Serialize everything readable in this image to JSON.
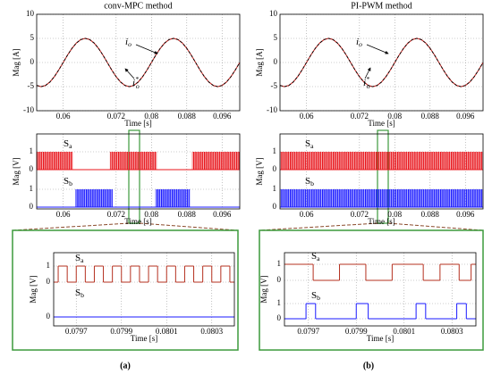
{
  "chart_data": [
    {
      "type": "line",
      "title": "conv-MPC method",
      "xlabel": "Time [s]",
      "ylabel": "Mag [A]",
      "xlim": [
        0.054,
        0.1
      ],
      "xticks": [
        0.06,
        0.072,
        0.08,
        0.088,
        0.096
      ],
      "ylim": [
        -10,
        10
      ],
      "yticks": [
        -10,
        -5,
        0,
        5,
        10
      ],
      "grid": true,
      "x": [
        0.054,
        0.055,
        0.056,
        0.057,
        0.058,
        0.059,
        0.06,
        0.061,
        0.062,
        0.063,
        0.064,
        0.065,
        0.066,
        0.067,
        0.068,
        0.069,
        0.07,
        0.071,
        0.072,
        0.073,
        0.074,
        0.075,
        0.076,
        0.077,
        0.078,
        0.079,
        0.08,
        0.081,
        0.082,
        0.083,
        0.084,
        0.085,
        0.086,
        0.087,
        0.088,
        0.089,
        0.09,
        0.091,
        0.092,
        0.093,
        0.094,
        0.095,
        0.096,
        0.097,
        0.098,
        0.099,
        0.1
      ],
      "series": [
        {
          "color": "#d0312d",
          "dashed": false,
          "label": {
            "base": "i",
            "sub": "o"
          },
          "values": [
            -4.76,
            -5,
            -4.76,
            -4.05,
            -2.94,
            -1.55,
            0,
            1.55,
            2.94,
            4.05,
            4.76,
            5,
            4.76,
            4.05,
            2.94,
            1.55,
            0,
            -1.55,
            -2.94,
            -4.05,
            -4.76,
            -5,
            -4.76,
            -4.05,
            -2.94,
            -1.55,
            0,
            1.55,
            2.94,
            4.05,
            4.76,
            5,
            4.76,
            4.05,
            2.94,
            1.55,
            0,
            -1.55,
            -2.94,
            -4.05,
            -4.76,
            -5,
            -4.76,
            -4.05,
            -2.94,
            -1.55,
            0
          ]
        },
        {
          "color": "#000000",
          "dashed": true,
          "label": {
            "base": "i",
            "sub": "o",
            "sup": "*"
          },
          "values": [
            -4.76,
            -5,
            -4.76,
            -4.05,
            -2.94,
            -1.55,
            0,
            1.55,
            2.94,
            4.05,
            4.76,
            5,
            4.76,
            4.05,
            2.94,
            1.55,
            0,
            -1.55,
            -2.94,
            -4.05,
            -4.76,
            -5,
            -4.76,
            -4.05,
            -2.94,
            -1.55,
            0,
            1.55,
            2.94,
            4.05,
            4.76,
            5,
            4.76,
            4.05,
            2.94,
            1.55,
            0,
            -1.55,
            -2.94,
            -4.05,
            -4.76,
            -5,
            -4.76,
            -4.05,
            -2.94,
            -1.55,
            0
          ]
        }
      ]
    },
    {
      "type": "line",
      "title": "PI-PWM method",
      "xlabel": "Time [s]",
      "ylabel": "Mag [A]",
      "xlim": [
        0.054,
        0.1
      ],
      "xticks": [
        0.06,
        0.072,
        0.08,
        0.088,
        0.096
      ],
      "ylim": [
        -10,
        10
      ],
      "yticks": [
        -10,
        -5,
        0,
        5,
        10
      ],
      "grid": true,
      "x": [
        0.054,
        0.055,
        0.056,
        0.057,
        0.058,
        0.059,
        0.06,
        0.061,
        0.062,
        0.063,
        0.064,
        0.065,
        0.066,
        0.067,
        0.068,
        0.069,
        0.07,
        0.071,
        0.072,
        0.073,
        0.074,
        0.075,
        0.076,
        0.077,
        0.078,
        0.079,
        0.08,
        0.081,
        0.082,
        0.083,
        0.084,
        0.085,
        0.086,
        0.087,
        0.088,
        0.089,
        0.09,
        0.091,
        0.092,
        0.093,
        0.094,
        0.095,
        0.096,
        0.097,
        0.098,
        0.099,
        0.1
      ],
      "series": [
        {
          "color": "#d0312d",
          "dashed": false,
          "label": {
            "base": "i",
            "sub": "o"
          },
          "values": [
            -4.76,
            -5,
            -4.76,
            -4.05,
            -2.94,
            -1.55,
            0,
            1.55,
            2.94,
            4.05,
            4.76,
            5,
            4.76,
            4.05,
            2.94,
            1.55,
            0,
            -1.55,
            -2.94,
            -4.05,
            -4.76,
            -5,
            -4.76,
            -4.05,
            -2.94,
            -1.55,
            0,
            1.55,
            2.94,
            4.05,
            4.76,
            5,
            4.76,
            4.05,
            2.94,
            1.55,
            0,
            -1.55,
            -2.94,
            -4.05,
            -4.76,
            -5,
            -4.76,
            -4.05,
            -2.94,
            -1.55,
            0
          ]
        },
        {
          "color": "#000000",
          "dashed": true,
          "label": {
            "base": "i",
            "sub": "o",
            "sup": "*"
          },
          "values": [
            -4.76,
            -5,
            -4.76,
            -4.05,
            -2.94,
            -1.55,
            0,
            1.55,
            2.94,
            4.05,
            4.76,
            5,
            4.76,
            4.05,
            2.94,
            1.55,
            0,
            -1.55,
            -2.94,
            -4.05,
            -4.76,
            -5,
            -4.76,
            -4.05,
            -2.94,
            -1.55,
            0,
            1.55,
            2.94,
            4.05,
            4.76,
            5,
            4.76,
            4.05,
            2.94,
            1.55,
            0,
            -1.55,
            -2.94,
            -4.05,
            -4.76,
            -5,
            -4.76,
            -4.05,
            -2.94,
            -1.55,
            0
          ]
        }
      ]
    },
    {
      "type": "digital",
      "xlabel": "Time [s]",
      "ylabel": "Mag [V]",
      "xlim": [
        0.054,
        0.1
      ],
      "xticks": [
        0.06,
        0.072,
        0.08,
        0.088,
        0.096
      ],
      "grid": true,
      "tracks": [
        {
          "name": "S",
          "sub": "a",
          "color": "#e8141b",
          "yticks": [
            0,
            1
          ],
          "bursts": [
            [
              0.054,
              0.0622
            ],
            [
              0.0706,
              0.0812
            ],
            [
              0.0892,
              0.1
            ]
          ]
        },
        {
          "name": "S",
          "sub": "b",
          "color": "#1a1aff",
          "yticks": [
            0,
            1
          ],
          "bursts": [
            [
              0.0628,
              0.0712
            ],
            [
              0.0809,
              0.0887
            ]
          ]
        }
      ]
    },
    {
      "type": "digital",
      "xlabel": "Time [s]",
      "ylabel": "Mag [V]",
      "xlim": [
        0.054,
        0.1
      ],
      "xticks": [
        0.06,
        0.072,
        0.08,
        0.088,
        0.096
      ],
      "grid": true,
      "tracks": [
        {
          "name": "S",
          "sub": "a",
          "color": "#e8141b",
          "yticks": [
            0,
            1
          ],
          "bursts": [
            [
              0.054,
              0.1
            ]
          ]
        },
        {
          "name": "S",
          "sub": "b",
          "color": "#1a1aff",
          "yticks": [
            0,
            1
          ],
          "bursts": [
            [
              0.054,
              0.1
            ]
          ]
        }
      ]
    },
    {
      "type": "step",
      "xlabel": "Time [s]",
      "ylabel": "Mag [V]",
      "xlim": [
        0.0796,
        0.0804
      ],
      "xticks": [
        0.0797,
        0.0799,
        0.0801,
        0.0803
      ],
      "grid": true,
      "tracks": [
        {
          "name": "S",
          "sub": "a",
          "color": "#b5301f",
          "yticks": [
            0,
            1
          ],
          "x": [
            0.0796,
            0.07962,
            0.07966,
            0.0797,
            0.07974,
            0.07978,
            0.07982,
            0.07986,
            0.0799,
            0.07994,
            0.07998,
            0.08002,
            0.08006,
            0.0801,
            0.08014,
            0.08018,
            0.08022,
            0.08026,
            0.0803,
            0.08034,
            0.08038
          ],
          "values": [
            0,
            1,
            0,
            1,
            0,
            1,
            0,
            1,
            0,
            1,
            0,
            1,
            0,
            1,
            0,
            1,
            0,
            1,
            0,
            1,
            0
          ]
        },
        {
          "name": "S",
          "sub": "b",
          "color": "#1a1aff",
          "yticks": [
            0
          ],
          "x": [
            0.0796
          ],
          "values": [
            0
          ]
        }
      ]
    },
    {
      "type": "step",
      "xlabel": "Time [s]",
      "ylabel": "Mag [V]",
      "xlim": [
        0.0796,
        0.0804
      ],
      "xticks": [
        0.0797,
        0.0799,
        0.0801,
        0.0803
      ],
      "grid": true,
      "tracks": [
        {
          "name": "S",
          "sub": "a",
          "color": "#b5301f",
          "yticks": [
            0,
            1
          ],
          "x": [
            0.0796,
            0.07972,
            0.07983,
            0.07994,
            0.08005,
            0.08018,
            0.08025,
            0.08033,
            0.08038
          ],
          "values": [
            1,
            0,
            1,
            0,
            1,
            0,
            1,
            0,
            1
          ]
        },
        {
          "name": "S",
          "sub": "b",
          "color": "#1a1aff",
          "yticks": [
            0,
            1
          ],
          "x": [
            0.0796,
            0.07969,
            0.07973,
            0.0799,
            0.07995,
            0.08015,
            0.08019,
            0.08032,
            0.08036
          ],
          "values": [
            0,
            1,
            0,
            1,
            0,
            1,
            0,
            1,
            0
          ]
        }
      ]
    }
  ],
  "captions": [
    "(a)",
    "(b)"
  ]
}
